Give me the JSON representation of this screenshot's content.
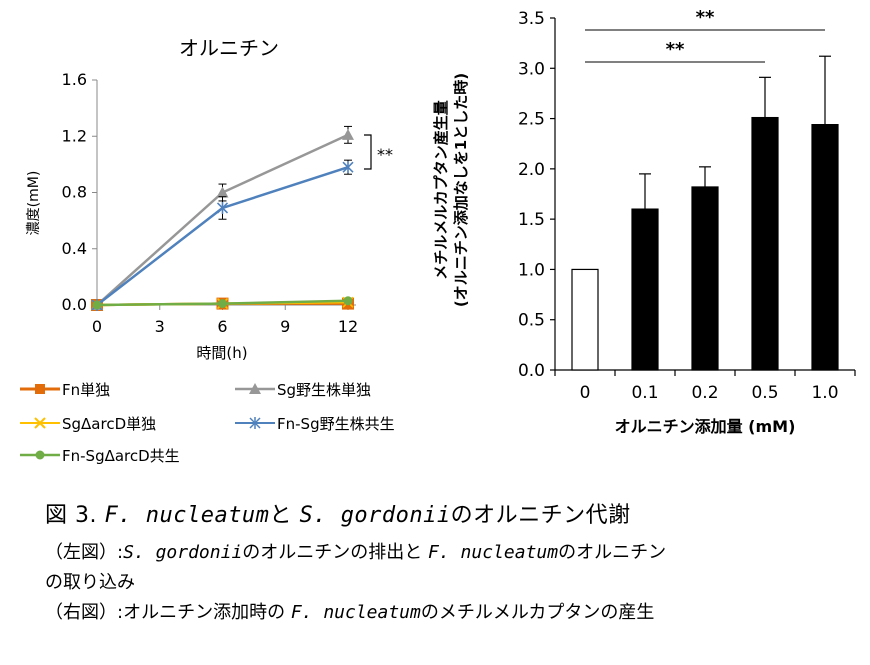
{
  "chart_data": [
    {
      "type": "line",
      "title": "オルニチン",
      "xlabel": "時間(h)",
      "ylabel": "濃度(mM)",
      "x": [
        0,
        6,
        12
      ],
      "xticks": [
        "0",
        "3",
        "6",
        "9",
        "12"
      ],
      "yticks": [
        "0.0",
        "0.4",
        "0.8",
        "1.2",
        "1.6"
      ],
      "xlim": [
        0,
        12
      ],
      "ylim": [
        0,
        1.6
      ],
      "legend_position": "bottom",
      "series": [
        {
          "name": "Fn単独",
          "color": "#e36c0a",
          "marker": "square",
          "values": [
            0.0,
            0.01,
            0.01
          ],
          "err": [
            0,
            0,
            0
          ]
        },
        {
          "name": "Sg野生株単独",
          "color": "#979797",
          "marker": "triangle",
          "values": [
            0.0,
            0.8,
            1.21
          ],
          "err": [
            0,
            0.06,
            0.06
          ]
        },
        {
          "name": "SgΔarcD単独",
          "color": "#ffc000",
          "marker": "x",
          "values": [
            0.0,
            0.01,
            0.02
          ],
          "err": [
            0,
            0,
            0
          ]
        },
        {
          "name": "Fn-Sg野生株共生",
          "color": "#4f81bd",
          "marker": "star",
          "values": [
            0.0,
            0.69,
            0.98
          ],
          "err": [
            0,
            0.08,
            0.05
          ]
        },
        {
          "name": "Fn-SgΔarcD共生",
          "color": "#70ad47",
          "marker": "circle",
          "values": [
            0.0,
            0.01,
            0.03
          ],
          "err": [
            0,
            0,
            0
          ]
        }
      ],
      "annotations": [
        {
          "text": "**"
        }
      ]
    },
    {
      "type": "bar",
      "xlabel": "オルニチン添加量 (mM)",
      "ylabel_line1": "メチルメルカプタン産生量",
      "ylabel_line2": "(オルニチン添加なしを1とした時)",
      "categories": [
        "0",
        "0.1",
        "0.2",
        "0.5",
        "1.0"
      ],
      "values": [
        1.0,
        1.6,
        1.82,
        2.51,
        2.44
      ],
      "err": [
        0,
        0.35,
        0.2,
        0.4,
        0.68
      ],
      "colors": [
        "#ffffff",
        "#000000",
        "#000000",
        "#000000",
        "#000000"
      ],
      "yticks": [
        "0.0",
        "0.5",
        "1.0",
        "1.5",
        "2.0",
        "2.5",
        "3.0",
        "3.5"
      ],
      "ylim": [
        0,
        3.5
      ],
      "significance": [
        {
          "from": 0,
          "to": 4,
          "text": "**"
        },
        {
          "from": 0,
          "to": 3,
          "text": "**"
        }
      ]
    }
  ],
  "caption": {
    "title_pre": "図 3.",
    "title_sp1": "F. nucleatum",
    "title_mid": "と",
    "title_sp2": "S. gordonii",
    "title_post": "のオルニチン代謝",
    "line1_pre": "（左図）:",
    "line1_sp1": "S. gordonii",
    "line1_mid": "のオルニチンの排出と",
    "line1_sp2": "F. nucleatum",
    "line1_post": "のオルニチン",
    "line2": "の取り込み",
    "line3_pre": "（右図）:オルニチン添加時の",
    "line3_sp": "F. nucleatum",
    "line3_post": "のメチルメルカプタンの産生"
  }
}
